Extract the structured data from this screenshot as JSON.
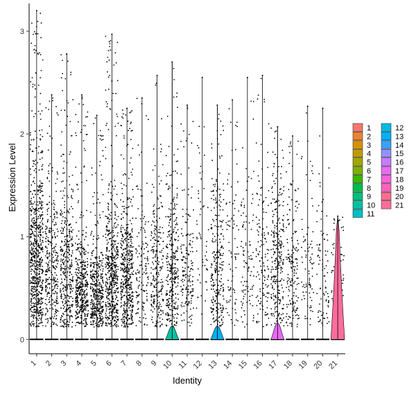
{
  "chart_data": {
    "type": "violin",
    "xlabel": "Identity",
    "ylabel": "Expression Level",
    "ylim": [
      -0.14,
      3.27
    ],
    "yticks": [
      0,
      1,
      2,
      3
    ],
    "grid": false,
    "legend_position": "right",
    "points_shown": true,
    "categories": [
      "1",
      "2",
      "3",
      "4",
      "5",
      "6",
      "7",
      "8",
      "9",
      "10",
      "11",
      "12",
      "13",
      "14",
      "15",
      "16",
      "17",
      "18",
      "19",
      "20",
      "21"
    ],
    "colors": [
      "#F8766D",
      "#EA8331",
      "#D89000",
      "#C09B00",
      "#A3A500",
      "#7CAE00",
      "#39B600",
      "#00BB4E",
      "#00BF7D",
      "#00C1A3",
      "#00BFC4",
      "#00BAE0",
      "#00B0F6",
      "#35A2FF",
      "#9590FF",
      "#C77CFF",
      "#E76BF3",
      "#FA62DB",
      "#FF62BC",
      "#FF6C91",
      "#FF6C9B"
    ],
    "series": [
      {
        "name": "1",
        "max": 3.2,
        "median_nonzero": 0.6,
        "density": 1.0
      },
      {
        "name": "2",
        "max": 2.38,
        "median_nonzero": 0.5,
        "density": 0.45
      },
      {
        "name": "3",
        "max": 2.78,
        "median_nonzero": 0.5,
        "density": 0.55
      },
      {
        "name": "4",
        "max": 2.38,
        "median_nonzero": 0.35,
        "density": 0.6
      },
      {
        "name": "5",
        "max": 2.18,
        "median_nonzero": 0.3,
        "density": 0.6
      },
      {
        "name": "6",
        "max": 2.97,
        "median_nonzero": 0.45,
        "density": 0.75
      },
      {
        "name": "7",
        "max": 2.25,
        "median_nonzero": 0.45,
        "density": 0.7
      },
      {
        "name": "8",
        "max": 2.35,
        "median_nonzero": 0.5,
        "density": 0.2
      },
      {
        "name": "9",
        "max": 2.57,
        "median_nonzero": 0.5,
        "density": 0.35
      },
      {
        "name": "10",
        "max": 2.7,
        "median_nonzero": 0.55,
        "density": 0.45
      },
      {
        "name": "11",
        "max": 2.28,
        "median_nonzero": 0.5,
        "density": 0.25
      },
      {
        "name": "12",
        "max": 2.55,
        "median_nonzero": 0.8,
        "density": 0.08
      },
      {
        "name": "13",
        "max": 2.28,
        "median_nonzero": 0.6,
        "density": 0.4
      },
      {
        "name": "14",
        "max": 2.33,
        "median_nonzero": 0.6,
        "density": 0.12
      },
      {
        "name": "15",
        "max": 2.55,
        "median_nonzero": 0.6,
        "density": 0.15
      },
      {
        "name": "16",
        "max": 2.57,
        "median_nonzero": 0.6,
        "density": 0.2
      },
      {
        "name": "17",
        "max": 2.07,
        "median_nonzero": 0.6,
        "density": 0.4
      },
      {
        "name": "18",
        "max": 1.98,
        "median_nonzero": 0.5,
        "density": 0.25
      },
      {
        "name": "19",
        "max": 2.27,
        "median_nonzero": 0.45,
        "density": 0.12
      },
      {
        "name": "20",
        "max": 2.25,
        "median_nonzero": 0.55,
        "density": 0.12
      },
      {
        "name": "21",
        "max": 1.2,
        "median_nonzero": 0.4,
        "density": 0.1
      }
    ],
    "violin_bulges": [
      {
        "category": "10",
        "peak_height": 0.13
      },
      {
        "category": "13",
        "peak_height": 0.13
      },
      {
        "category": "17",
        "peak_height": 0.16
      },
      {
        "category": "21",
        "peak_height": 1.2
      }
    ],
    "legend": [
      "1",
      "2",
      "3",
      "4",
      "5",
      "6",
      "7",
      "8",
      "9",
      "10",
      "11",
      "12",
      "13",
      "14",
      "15",
      "16",
      "17",
      "18",
      "19",
      "20",
      "21"
    ]
  }
}
